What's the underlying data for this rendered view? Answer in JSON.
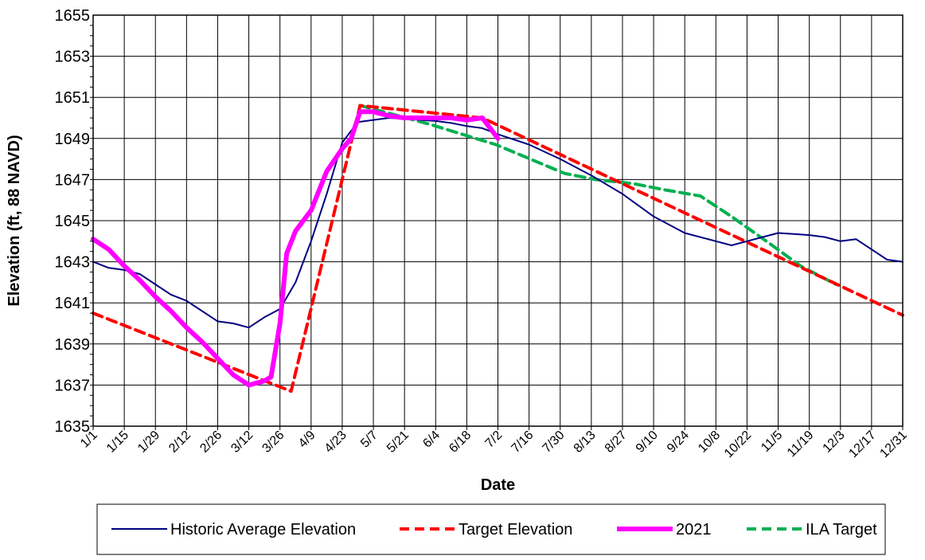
{
  "chart_data": {
    "type": "line",
    "title": "",
    "xlabel": "Date",
    "ylabel": "Elevation (ft, 88 NAVD)",
    "ylim": [
      1635,
      1655
    ],
    "yticks": [
      1635,
      1637,
      1639,
      1641,
      1643,
      1645,
      1647,
      1649,
      1651,
      1653,
      1655
    ],
    "xlim": [
      "1/1",
      "12/31"
    ],
    "xtick_labels": [
      "1/1",
      "1/15",
      "1/29",
      "2/12",
      "2/26",
      "3/12",
      "3/26",
      "4/9",
      "4/23",
      "5/7",
      "5/21",
      "6/4",
      "6/18",
      "7/2",
      "7/16",
      "7/30",
      "8/13",
      "8/27",
      "9/10",
      "9/24",
      "10/8",
      "10/22",
      "11/5",
      "11/19",
      "12/3",
      "12/17",
      "12/31"
    ],
    "grid": true,
    "legend_position": "bottom",
    "series": [
      {
        "name": "Historic Average Elevation",
        "color": "#000080",
        "style": "solid",
        "points": [
          [
            "1/1",
            1643.0
          ],
          [
            "1/8",
            1642.7
          ],
          [
            "1/15",
            1642.6
          ],
          [
            "1/22",
            1642.4
          ],
          [
            "1/29",
            1641.9
          ],
          [
            "2/5",
            1641.4
          ],
          [
            "2/12",
            1641.1
          ],
          [
            "2/19",
            1640.6
          ],
          [
            "2/26",
            1640.1
          ],
          [
            "3/5",
            1640.0
          ],
          [
            "3/12",
            1639.8
          ],
          [
            "3/19",
            1640.3
          ],
          [
            "3/26",
            1640.7
          ],
          [
            "4/2",
            1642.0
          ],
          [
            "4/9",
            1644.0
          ],
          [
            "4/16",
            1646.3
          ],
          [
            "4/23",
            1648.8
          ],
          [
            "4/30",
            1649.8
          ],
          [
            "5/7",
            1649.9
          ],
          [
            "5/14",
            1650.0
          ],
          [
            "5/21",
            1649.95
          ],
          [
            "6/4",
            1649.85
          ],
          [
            "6/11",
            1649.75
          ],
          [
            "6/18",
            1649.6
          ],
          [
            "6/25",
            1649.5
          ],
          [
            "7/2",
            1649.2
          ],
          [
            "7/16",
            1648.7
          ],
          [
            "7/30",
            1648.0
          ],
          [
            "8/13",
            1647.2
          ],
          [
            "8/27",
            1646.3
          ],
          [
            "9/10",
            1645.2
          ],
          [
            "9/24",
            1644.4
          ],
          [
            "10/8",
            1644.0
          ],
          [
            "10/15",
            1643.8
          ],
          [
            "10/22",
            1644.0
          ],
          [
            "10/29",
            1644.2
          ],
          [
            "11/5",
            1644.4
          ],
          [
            "11/12",
            1644.35
          ],
          [
            "11/19",
            1644.3
          ],
          [
            "11/26",
            1644.2
          ],
          [
            "12/3",
            1644.0
          ],
          [
            "12/10",
            1644.1
          ],
          [
            "12/17",
            1643.6
          ],
          [
            "12/24",
            1643.1
          ],
          [
            "12/31",
            1643.0
          ]
        ]
      },
      {
        "name": "Target Elevation",
        "color": "#FF0000",
        "style": "dashed",
        "points": [
          [
            "1/1",
            1640.5
          ],
          [
            "3/31",
            1636.7
          ],
          [
            "5/1",
            1650.6
          ],
          [
            "6/25",
            1650.0
          ],
          [
            "12/31",
            1640.4
          ]
        ]
      },
      {
        "name": "2021",
        "color": "#FF00FF",
        "style": "thick",
        "points": [
          [
            "1/1",
            1644.1
          ],
          [
            "1/8",
            1643.6
          ],
          [
            "1/15",
            1642.8
          ],
          [
            "1/22",
            1642.1
          ],
          [
            "1/29",
            1641.3
          ],
          [
            "2/5",
            1640.6
          ],
          [
            "2/12",
            1639.8
          ],
          [
            "2/19",
            1639.1
          ],
          [
            "2/26",
            1638.3
          ],
          [
            "3/5",
            1637.5
          ],
          [
            "3/12",
            1637.0
          ],
          [
            "3/19",
            1637.2
          ],
          [
            "3/22",
            1637.4
          ],
          [
            "3/26",
            1640.0
          ],
          [
            "3/29",
            1643.4
          ],
          [
            "4/2",
            1644.5
          ],
          [
            "4/9",
            1645.5
          ],
          [
            "4/16",
            1647.4
          ],
          [
            "4/23",
            1648.5
          ],
          [
            "4/27",
            1649.0
          ],
          [
            "5/1",
            1650.3
          ],
          [
            "5/7",
            1650.3
          ],
          [
            "5/14",
            1650.1
          ],
          [
            "5/21",
            1650.0
          ],
          [
            "6/4",
            1650.0
          ],
          [
            "6/11",
            1650.0
          ],
          [
            "6/18",
            1649.9
          ],
          [
            "6/25",
            1650.0
          ],
          [
            "7/2",
            1649.0
          ]
        ]
      },
      {
        "name": "ILA Target",
        "color": "#00B050",
        "style": "dashed",
        "points": [
          [
            "5/1",
            1650.6
          ],
          [
            "6/1",
            1649.7
          ],
          [
            "7/1",
            1648.7
          ],
          [
            "8/1",
            1647.3
          ],
          [
            "8/15",
            1647.0
          ],
          [
            "9/1",
            1646.8
          ],
          [
            "9/15",
            1646.5
          ],
          [
            "10/1",
            1646.2
          ],
          [
            "10/15",
            1645.2
          ],
          [
            "11/1",
            1643.9
          ],
          [
            "11/15",
            1642.8
          ],
          [
            "12/1",
            1641.9
          ]
        ]
      }
    ]
  }
}
